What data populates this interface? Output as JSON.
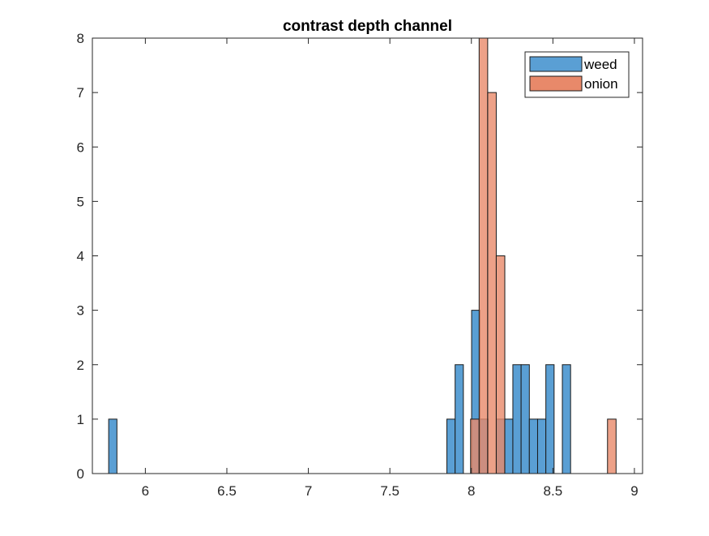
{
  "chart_data": {
    "type": "bar",
    "title": "contrast depth channel",
    "xlabel": "",
    "ylabel": "",
    "xlim": [
      5.675,
      9.05
    ],
    "ylim": [
      0,
      8
    ],
    "xticks": [
      6,
      6.5,
      7,
      7.5,
      8,
      8.5,
      9
    ],
    "xtick_labels": [
      "6",
      "6.5",
      "7",
      "7.5",
      "8",
      "8.5",
      "9"
    ],
    "yticks": [
      0,
      1,
      2,
      3,
      4,
      5,
      6,
      7,
      8
    ],
    "ytick_labels": [
      "0",
      "1",
      "2",
      "3",
      "4",
      "5",
      "6",
      "7",
      "8"
    ],
    "grid": false,
    "legend_position": "top-right",
    "series": [
      {
        "name": "weed",
        "color": "#5a9fd4",
        "bin_start": 5.775,
        "bin_width": 0.0506,
        "counts": [
          1,
          0,
          0,
          0,
          0,
          0,
          0,
          0,
          0,
          0,
          0,
          0,
          0,
          0,
          0,
          0,
          0,
          0,
          0,
          0,
          0,
          0,
          0,
          0,
          0,
          0,
          0,
          0,
          0,
          0,
          0,
          0,
          0,
          0,
          0,
          0,
          0,
          0,
          0,
          0,
          0,
          1,
          2,
          0,
          3,
          1,
          0,
          1,
          1,
          2,
          2,
          1,
          1,
          2,
          0,
          2
        ]
      },
      {
        "name": "onion",
        "color": "#e8896a",
        "bin_start": 7.995,
        "bin_width": 0.0525,
        "counts": [
          1,
          8,
          7,
          4,
          0,
          0,
          0,
          0,
          0,
          0,
          0,
          0,
          0,
          0,
          0,
          0,
          1
        ]
      }
    ]
  }
}
